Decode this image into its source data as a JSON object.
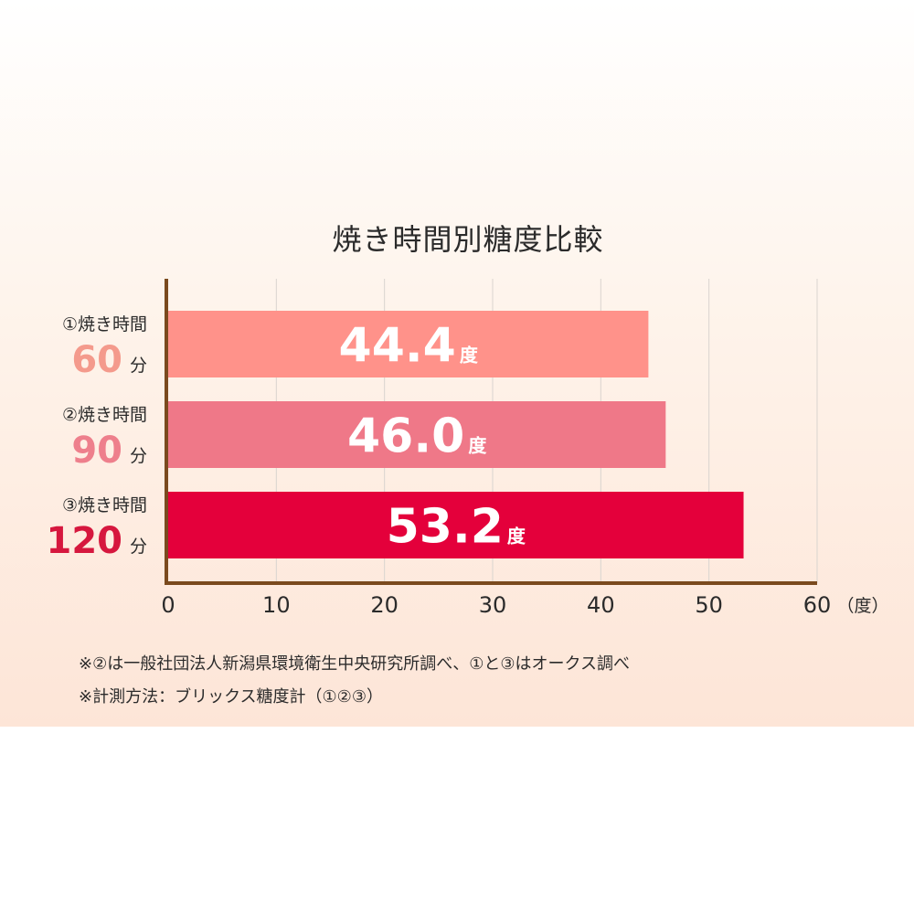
{
  "chart_data": {
    "type": "bar",
    "orientation": "horizontal",
    "title": "焼き時間別糖度比較",
    "categories": [
      {
        "label": "①焼き時間",
        "value_label": "60",
        "unit": "分"
      },
      {
        "label": "②焼き時間",
        "value_label": "90",
        "unit": "分"
      },
      {
        "label": "③焼き時間",
        "value_label": "120",
        "unit": "分"
      }
    ],
    "values": [
      44.4,
      46.0,
      53.2
    ],
    "value_labels": [
      "44.4",
      "46.0",
      "53.2"
    ],
    "value_unit": "度",
    "xlim": [
      0,
      60
    ],
    "x_ticks": [
      "0",
      "10",
      "20",
      "30",
      "40",
      "50",
      "60"
    ],
    "x_unit_label": "（度）",
    "grid": true,
    "colors": {
      "bars": [
        "#ff928a",
        "#ef7888",
        "#e4003b"
      ],
      "category_numbers": [
        "#f49a8c",
        "#ee7f8c",
        "#d6173e"
      ],
      "axis": "#7a4a1e",
      "grid": "#d9d4cf"
    }
  },
  "notes": [
    "※②は一般社団法人新潟県環境衛生中央研究所調べ、①と③はオークス調べ",
    "※計測方法：ブリックス糖度計（①②③）"
  ]
}
